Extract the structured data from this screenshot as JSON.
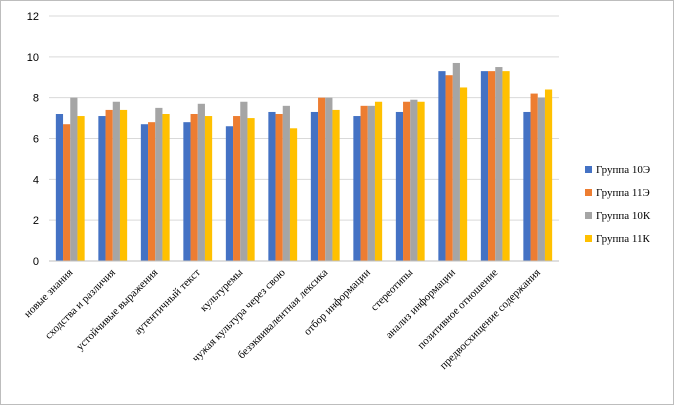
{
  "chart_data": {
    "type": "bar",
    "title": "",
    "xlabel": "",
    "ylabel": "",
    "ylim": [
      0,
      12
    ],
    "yticks": [
      0,
      2,
      4,
      6,
      8,
      10,
      12
    ],
    "grid": "horizontal",
    "legend_position": "right",
    "categories": [
      "новые знания",
      "сходства  и различия",
      "устойчивые выражения",
      "аутентичный  текст",
      "культуремы",
      "чужая культура через свою",
      "безэквивалентная  лексика",
      "отбор информации",
      "стереотипы",
      "анализ информации",
      "позитивное  отношение",
      "предвосхищение  содержания"
    ],
    "series": [
      {
        "name": "Группа 10Э",
        "color": "#4472C4",
        "values": [
          7.2,
          7.1,
          6.7,
          6.8,
          6.6,
          7.3,
          7.3,
          7.1,
          7.3,
          9.3,
          9.3,
          7.3
        ]
      },
      {
        "name": "Группа 11Э",
        "color": "#ED7D31",
        "values": [
          6.7,
          7.4,
          6.8,
          7.2,
          7.1,
          7.2,
          8.0,
          7.6,
          7.8,
          9.1,
          9.3,
          8.2
        ]
      },
      {
        "name": "Группа 10К",
        "color": "#A5A5A5",
        "values": [
          8.0,
          7.8,
          7.5,
          7.7,
          7.8,
          7.6,
          8.0,
          7.6,
          7.9,
          9.7,
          9.5,
          8.0
        ]
      },
      {
        "name": "Группа 11К",
        "color": "#FFC000",
        "values": [
          7.1,
          7.4,
          7.2,
          7.1,
          7.0,
          6.5,
          7.4,
          7.8,
          7.8,
          8.5,
          9.3,
          8.4
        ]
      }
    ]
  }
}
